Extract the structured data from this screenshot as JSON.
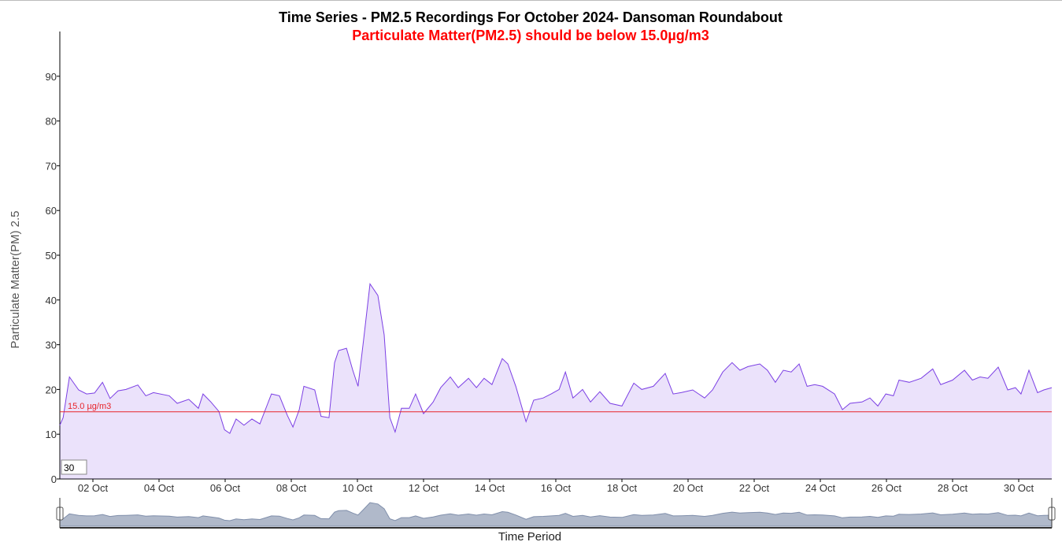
{
  "chart_data": {
    "type": "line",
    "title": "Time Series - PM2.5 Recordings For October 2024- Dansoman Roundabout",
    "subtitle": "Particulate Matter(PM2.5) should be below 15.0µg/m3",
    "x_label": "Time Period",
    "y_label": "Particulate Matter(PM) 2.5",
    "xlim": [
      1,
      31
    ],
    "xticks": [
      {
        "value": 2,
        "label": "02 Oct"
      },
      {
        "value": 4,
        "label": "04 Oct"
      },
      {
        "value": 6,
        "label": "06 Oct"
      },
      {
        "value": 8,
        "label": "08 Oct"
      },
      {
        "value": 10,
        "label": "10 Oct"
      },
      {
        "value": 12,
        "label": "12 Oct"
      },
      {
        "value": 14,
        "label": "14 Oct"
      },
      {
        "value": 16,
        "label": "16 Oct"
      },
      {
        "value": 18,
        "label": "18 Oct"
      },
      {
        "value": 20,
        "label": "20 Oct"
      },
      {
        "value": 22,
        "label": "22 Oct"
      },
      {
        "value": 24,
        "label": "24 Oct"
      },
      {
        "value": 26,
        "label": "26 Oct"
      },
      {
        "value": 28,
        "label": "28 Oct"
      },
      {
        "value": 30,
        "label": "30 Oct"
      }
    ],
    "ylim": [
      0,
      100
    ],
    "yticks": [
      0,
      10,
      20,
      30,
      40,
      50,
      60,
      70,
      80,
      90
    ],
    "threshold": {
      "value": 15.0,
      "label": "15.0 µg/m3",
      "color": "#e8242b"
    },
    "roll_period": 30,
    "fill": true,
    "x": [
      1.0,
      1.1,
      1.29,
      1.57,
      1.81,
      2.05,
      2.29,
      2.52,
      2.76,
      3.0,
      3.36,
      3.6,
      3.83,
      4.31,
      4.55,
      4.9,
      5.19,
      5.33,
      5.57,
      5.81,
      5.98,
      6.14,
      6.33,
      6.57,
      6.81,
      7.05,
      7.29,
      7.4,
      7.64,
      7.88,
      8.05,
      8.24,
      8.38,
      8.71,
      8.9,
      9.14,
      9.31,
      9.43,
      9.67,
      9.86,
      10.02,
      10.19,
      10.38,
      10.62,
      10.81,
      10.98,
      11.14,
      11.33,
      11.57,
      11.76,
      12.0,
      12.29,
      12.52,
      12.81,
      13.05,
      13.36,
      13.6,
      13.83,
      14.07,
      14.38,
      14.55,
      14.79,
      15.1,
      15.33,
      15.62,
      15.86,
      16.1,
      16.29,
      16.52,
      16.81,
      17.05,
      17.33,
      17.64,
      18.0,
      18.36,
      18.6,
      18.95,
      19.31,
      19.55,
      19.79,
      20.14,
      20.5,
      20.74,
      21.05,
      21.33,
      21.57,
      21.81,
      22.17,
      22.4,
      22.64,
      22.88,
      23.12,
      23.36,
      23.6,
      23.83,
      24.07,
      24.43,
      24.67,
      24.9,
      25.26,
      25.5,
      25.74,
      25.98,
      26.21,
      26.38,
      26.69,
      27.05,
      27.4,
      27.64,
      28.0,
      28.36,
      28.6,
      28.83,
      29.07,
      29.38,
      29.67,
      29.9,
      30.07,
      30.31,
      30.57,
      30.76,
      31.0
    ],
    "series": [
      {
        "name": "PM2.5",
        "color": "#7b3fe4",
        "values": [
          12,
          13.7,
          22.8,
          19.9,
          19,
          19.2,
          21.6,
          18,
          19.7,
          20,
          21,
          18.6,
          19.3,
          18.6,
          16.9,
          17.8,
          15.8,
          19,
          17.2,
          15.1,
          11,
          10.2,
          13.4,
          12,
          13.4,
          12.3,
          16.9,
          19,
          18.6,
          14.2,
          11.6,
          15.5,
          20.7,
          19.9,
          14,
          13.7,
          26,
          28.7,
          29.2,
          24.3,
          20.7,
          31.3,
          43.6,
          41,
          32.2,
          13.7,
          10.5,
          15.8,
          15.8,
          19,
          14.6,
          17.2,
          20.4,
          22.8,
          20.4,
          22.5,
          20.4,
          22.5,
          21.1,
          26.9,
          25.7,
          20.7,
          12.8,
          17.6,
          18.1,
          19,
          20,
          23.9,
          18.1,
          20,
          17.2,
          19.5,
          16.9,
          16.3,
          21.4,
          20,
          20.7,
          23.6,
          19,
          19.3,
          19.9,
          18.1,
          19.9,
          23.9,
          26,
          24.3,
          25.1,
          25.7,
          24.3,
          21.6,
          24.3,
          23.9,
          25.7,
          20.7,
          21.1,
          20.7,
          19,
          15.5,
          16.9,
          17.2,
          18.1,
          16.3,
          19,
          18.6,
          22.1,
          21.6,
          22.5,
          24.6,
          21.1,
          22.1,
          24.3,
          22.1,
          22.8,
          22.5,
          25,
          19.9,
          20.4,
          19,
          24.3,
          19.3,
          19.9,
          20.4
        ]
      }
    ]
  }
}
